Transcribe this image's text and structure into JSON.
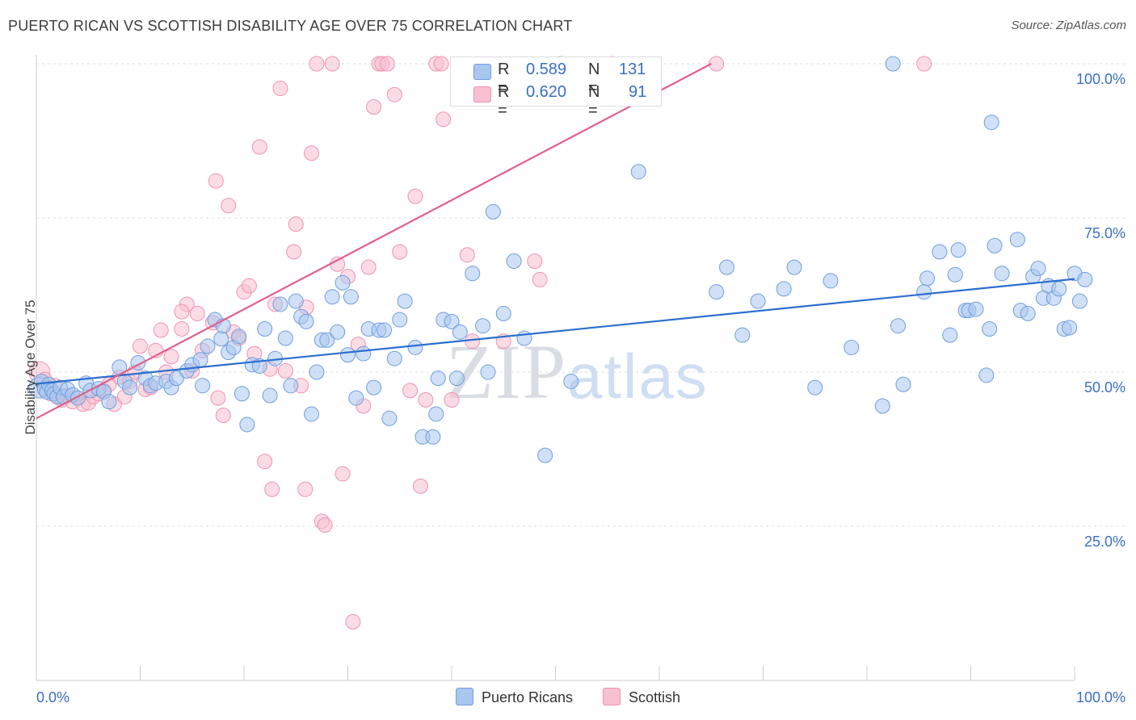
{
  "title": "PUERTO RICAN VS SCOTTISH DISABILITY AGE OVER 75 CORRELATION CHART",
  "source": "Source: ZipAtlas.com",
  "watermark": {
    "zip": "ZIP",
    "atlas": "atlas"
  },
  "colors": {
    "blue": "#6f9fde",
    "blue_fill": "#a9c6ef",
    "blue_line": "#2c6fcf",
    "pink": "#ef93b1",
    "pink_fill": "#f7bfd0",
    "pink_line": "#e0608c",
    "axis_text": "#3a6fc4"
  },
  "stats": [
    {
      "r_label": "R =",
      "r_value": "0.589",
      "n_label": "N =",
      "n_value": "131"
    },
    {
      "r_label": "R =",
      "r_value": "0.620",
      "n_label": "N =",
      "n_value": "91"
    }
  ],
  "legend": [
    {
      "label": "Puerto Ricans"
    },
    {
      "label": "Scottish"
    }
  ],
  "chart_data": {
    "type": "scatter",
    "title": "PUERTO RICAN VS SCOTTISH DISABILITY AGE OVER 75 CORRELATION CHART",
    "xlabel": "",
    "ylabel": "Disability Age Over 75",
    "xlim": [
      0,
      100
    ],
    "ylim": [
      0,
      100
    ],
    "x_ticks": [
      "0.0%",
      "100.0%"
    ],
    "y_ticks": [
      {
        "value": 25,
        "label": "25.0%"
      },
      {
        "value": 50,
        "label": "50.0%"
      },
      {
        "value": 75,
        "label": "75.0%"
      },
      {
        "value": 100,
        "label": "100.0%"
      }
    ],
    "grid": "horizontal dashed",
    "legend_position": "bottom-center",
    "series": [
      {
        "name": "Puerto Ricans",
        "r": 0.589,
        "n": 131,
        "trend": {
          "x": [
            0,
            100
          ],
          "y": [
            48.1,
            65.1
          ]
        },
        "points": [
          [
            0.3,
            47.5
          ],
          [
            0.5,
            48.5
          ],
          [
            0.8,
            47.2
          ],
          [
            1.0,
            46.8
          ],
          [
            1.2,
            48.0
          ],
          [
            1.5,
            47.0
          ],
          [
            1.7,
            46.5
          ],
          [
            2.0,
            46.0
          ],
          [
            2.3,
            47.5
          ],
          [
            2.6,
            46.0
          ],
          [
            3.0,
            47.2
          ],
          [
            3.5,
            46.3
          ],
          [
            4.0,
            45.8
          ],
          [
            4.8,
            48.2
          ],
          [
            5.2,
            47.0
          ],
          [
            6.0,
            47.3
          ],
          [
            6.5,
            46.8
          ],
          [
            7.0,
            45.2
          ],
          [
            8.0,
            50.8
          ],
          [
            8.5,
            48.5
          ],
          [
            9.0,
            47.5
          ],
          [
            9.8,
            51.5
          ],
          [
            10.5,
            49.0
          ],
          [
            11.0,
            47.8
          ],
          [
            11.5,
            48.2
          ],
          [
            12.5,
            48.5
          ],
          [
            13.0,
            47.5
          ],
          [
            13.5,
            49.0
          ],
          [
            14.5,
            50.2
          ],
          [
            15.0,
            51.2
          ],
          [
            15.8,
            52.0
          ],
          [
            16.0,
            47.8
          ],
          [
            16.5,
            54.2
          ],
          [
            17.2,
            58.5
          ],
          [
            17.8,
            55.4
          ],
          [
            18.0,
            57.5
          ],
          [
            18.5,
            53.2
          ],
          [
            19.0,
            54.0
          ],
          [
            19.5,
            55.8
          ],
          [
            19.8,
            46.5
          ],
          [
            20.3,
            41.5
          ],
          [
            20.8,
            51.2
          ],
          [
            21.5,
            51.0
          ],
          [
            22.0,
            57.0
          ],
          [
            22.5,
            46.2
          ],
          [
            23.0,
            52.2
          ],
          [
            23.5,
            61.0
          ],
          [
            24.0,
            55.5
          ],
          [
            24.5,
            47.8
          ],
          [
            25.0,
            61.5
          ],
          [
            25.5,
            59.0
          ],
          [
            26.0,
            58.2
          ],
          [
            26.5,
            43.2
          ],
          [
            27.0,
            50.0
          ],
          [
            27.5,
            55.2
          ],
          [
            28.0,
            55.2
          ],
          [
            28.5,
            62.2
          ],
          [
            29.0,
            56.5
          ],
          [
            29.5,
            64.5
          ],
          [
            30.0,
            52.8
          ],
          [
            30.3,
            62.2
          ],
          [
            30.8,
            45.8
          ],
          [
            31.5,
            53.0
          ],
          [
            32.0,
            57.0
          ],
          [
            32.5,
            47.5
          ],
          [
            33.0,
            56.8
          ],
          [
            33.5,
            56.8
          ],
          [
            34.0,
            42.5
          ],
          [
            34.5,
            52.2
          ],
          [
            35.0,
            58.5
          ],
          [
            35.5,
            61.5
          ],
          [
            36.5,
            54.0
          ],
          [
            37.2,
            39.5
          ],
          [
            38.2,
            39.5
          ],
          [
            38.5,
            43.2
          ],
          [
            38.7,
            49.0
          ],
          [
            39.2,
            58.5
          ],
          [
            40.0,
            58.2
          ],
          [
            40.5,
            49.0
          ],
          [
            40.8,
            56.5
          ],
          [
            42.0,
            66.0
          ],
          [
            43.0,
            57.5
          ],
          [
            43.5,
            50.0
          ],
          [
            44.0,
            76.0
          ],
          [
            45.0,
            59.5
          ],
          [
            46.0,
            68.0
          ],
          [
            47.0,
            55.5
          ],
          [
            49.0,
            36.5
          ],
          [
            51.5,
            48.5
          ],
          [
            58.0,
            82.5
          ],
          [
            65.5,
            63.0
          ],
          [
            66.5,
            67.0
          ],
          [
            68.0,
            56.0
          ],
          [
            69.5,
            61.5
          ],
          [
            72.0,
            63.5
          ],
          [
            73.0,
            67.0
          ],
          [
            75.0,
            47.5
          ],
          [
            76.5,
            64.8
          ],
          [
            78.5,
            54.0
          ],
          [
            81.5,
            44.5
          ],
          [
            83.0,
            57.5
          ],
          [
            83.5,
            48.0
          ],
          [
            85.5,
            63.0
          ],
          [
            85.8,
            65.2
          ],
          [
            87.0,
            69.5
          ],
          [
            88.0,
            56.0
          ],
          [
            88.5,
            65.8
          ],
          [
            88.8,
            69.8
          ],
          [
            89.5,
            60.0
          ],
          [
            89.8,
            60.0
          ],
          [
            90.5,
            60.2
          ],
          [
            91.5,
            49.5
          ],
          [
            91.8,
            57.0
          ],
          [
            92.0,
            90.5
          ],
          [
            92.3,
            70.5
          ],
          [
            93.0,
            66.0
          ],
          [
            94.5,
            71.5
          ],
          [
            94.8,
            60.0
          ],
          [
            95.5,
            59.5
          ],
          [
            96.0,
            65.5
          ],
          [
            96.5,
            66.8
          ],
          [
            97.0,
            62.0
          ],
          [
            97.5,
            64.0
          ],
          [
            98.0,
            62.0
          ],
          [
            98.5,
            63.5
          ],
          [
            99.0,
            57.0
          ],
          [
            99.5,
            57.2
          ],
          [
            100.0,
            66.0
          ],
          [
            100.5,
            61.5
          ],
          [
            101.0,
            65.0
          ],
          [
            82.5,
            100.0
          ]
        ]
      },
      {
        "name": "Scottish",
        "r": 0.62,
        "n": 91,
        "trend": {
          "x": [
            0,
            65
          ],
          "y": [
            42.5,
            100.0
          ]
        },
        "points": [
          [
            0.3,
            50.0
          ],
          [
            0.8,
            48.8
          ],
          [
            1.0,
            47.5
          ],
          [
            1.4,
            46.5
          ],
          [
            1.8,
            47.8
          ],
          [
            2.2,
            46.0
          ],
          [
            2.5,
            45.5
          ],
          [
            3.0,
            46.2
          ],
          [
            3.5,
            45.2
          ],
          [
            4.0,
            45.8
          ],
          [
            4.5,
            44.8
          ],
          [
            5.0,
            45.0
          ],
          [
            5.5,
            46.0
          ],
          [
            6.0,
            46.5
          ],
          [
            6.5,
            47.0
          ],
          [
            7.0,
            48.0
          ],
          [
            7.5,
            44.8
          ],
          [
            8.0,
            49.2
          ],
          [
            8.5,
            46.0
          ],
          [
            9.0,
            48.5
          ],
          [
            9.5,
            50.0
          ],
          [
            10.0,
            54.2
          ],
          [
            10.5,
            47.2
          ],
          [
            11.0,
            47.5
          ],
          [
            11.5,
            53.5
          ],
          [
            12.0,
            56.8
          ],
          [
            12.5,
            50.0
          ],
          [
            13.0,
            52.5
          ],
          [
            14.0,
            57.0
          ],
          [
            14.5,
            61.0
          ],
          [
            15.0,
            50.2
          ],
          [
            15.5,
            59.5
          ],
          [
            16.0,
            53.5
          ],
          [
            17.0,
            58.0
          ],
          [
            17.5,
            45.8
          ],
          [
            18.0,
            43.0
          ],
          [
            17.3,
            81.0
          ],
          [
            18.5,
            77.0
          ],
          [
            19.0,
            56.5
          ],
          [
            19.5,
            55.5
          ],
          [
            20.0,
            63.0
          ],
          [
            20.5,
            64.0
          ],
          [
            21.0,
            53.0
          ],
          [
            21.5,
            86.5
          ],
          [
            22.0,
            35.5
          ],
          [
            22.5,
            50.5
          ],
          [
            23.0,
            61.0
          ],
          [
            23.5,
            96.0
          ],
          [
            24.0,
            50.2
          ],
          [
            24.8,
            69.5
          ],
          [
            25.0,
            74.0
          ],
          [
            25.5,
            47.8
          ],
          [
            26.0,
            60.5
          ],
          [
            26.5,
            85.5
          ],
          [
            27.0,
            100.0
          ],
          [
            27.5,
            25.8
          ],
          [
            27.8,
            25.2
          ],
          [
            28.5,
            100.0
          ],
          [
            29.0,
            67.5
          ],
          [
            29.5,
            33.5
          ],
          [
            30.0,
            65.5
          ],
          [
            30.5,
            9.5
          ],
          [
            31.0,
            54.5
          ],
          [
            31.5,
            44.5
          ],
          [
            32.0,
            67.0
          ],
          [
            32.5,
            93.0
          ],
          [
            33.0,
            100.0
          ],
          [
            33.3,
            100.0
          ],
          [
            33.8,
            100.0
          ],
          [
            34.5,
            95.0
          ],
          [
            35.0,
            69.5
          ],
          [
            36.0,
            47.0
          ],
          [
            36.5,
            78.5
          ],
          [
            37.0,
            31.5
          ],
          [
            37.5,
            45.5
          ],
          [
            38.5,
            100.0
          ],
          [
            39.0,
            100.0
          ],
          [
            39.2,
            91.0
          ],
          [
            40.0,
            45.5
          ],
          [
            41.5,
            69.0
          ],
          [
            42.0,
            55.0
          ],
          [
            45.0,
            55.0
          ],
          [
            48.0,
            68.0
          ],
          [
            48.5,
            65.0
          ],
          [
            50.5,
            100.0
          ],
          [
            55.5,
            100.0
          ],
          [
            65.5,
            100.0
          ],
          [
            85.5,
            100.0
          ],
          [
            22.7,
            31.0
          ],
          [
            25.9,
            31.0
          ],
          [
            14.0,
            59.8
          ]
        ]
      }
    ]
  }
}
